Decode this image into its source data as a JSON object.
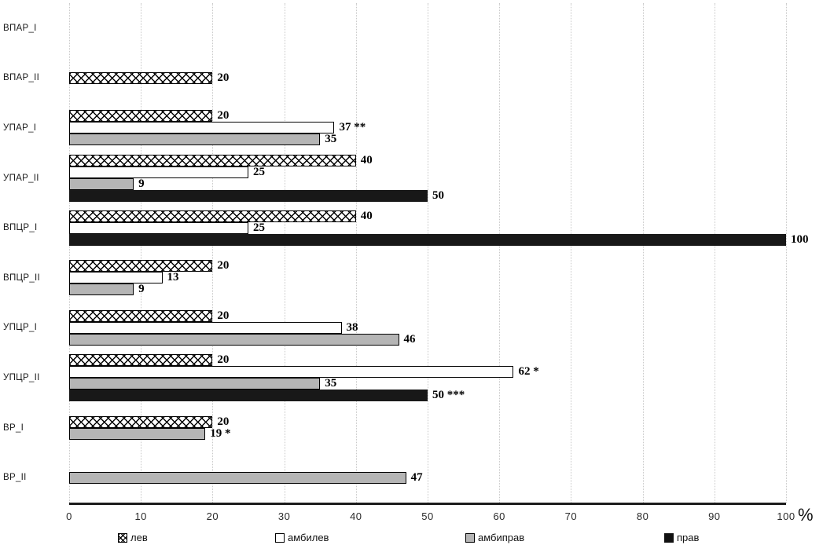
{
  "chart_data": {
    "type": "bar",
    "orientation": "horizontal",
    "title": "",
    "xlabel": "%",
    "percent_label": "%",
    "xlim": [
      0,
      100
    ],
    "x_ticks": [
      "0",
      "10",
      "20",
      "30",
      "40",
      "50",
      "60",
      "70",
      "80",
      "90",
      "100"
    ],
    "grid": "vertical-dotted",
    "legend_position": "bottom",
    "series_styles": {
      "лев": "hatch",
      "амбилев": "white",
      "амбиправ": "gray",
      "прав": "black"
    },
    "legend": [
      {
        "label": "лев",
        "style": "hatch"
      },
      {
        "label": "амбилев",
        "style": "white"
      },
      {
        "label": "амбиправ",
        "style": "gray"
      },
      {
        "label": "прав",
        "style": "black"
      }
    ],
    "groups": [
      {
        "category": "ВПАР_I",
        "bars": []
      },
      {
        "category": "ВПАР_II",
        "bars": [
          {
            "series": "лев",
            "value": 20,
            "label": "20"
          }
        ]
      },
      {
        "category": "УПАР_I",
        "bars": [
          {
            "series": "лев",
            "value": 20,
            "label": "20"
          },
          {
            "series": "амбилев",
            "value": 37,
            "label": "37 **"
          },
          {
            "series": "амбиправ",
            "value": 35,
            "label": "35"
          }
        ]
      },
      {
        "category": "УПАР_II",
        "bars": [
          {
            "series": "лев",
            "value": 40,
            "label": "40"
          },
          {
            "series": "амбилев",
            "value": 25,
            "label": "25"
          },
          {
            "series": "амбиправ",
            "value": 9,
            "label": "9"
          },
          {
            "series": "прав",
            "value": 50,
            "label": "50"
          }
        ]
      },
      {
        "category": "ВПЦР_I",
        "bars": [
          {
            "series": "лев",
            "value": 40,
            "label": "40"
          },
          {
            "series": "амбилев",
            "value": 25,
            "label": "25"
          },
          {
            "series": "прав",
            "value": 100,
            "label": "100"
          }
        ]
      },
      {
        "category": "ВПЦР_II",
        "bars": [
          {
            "series": "лев",
            "value": 20,
            "label": "20"
          },
          {
            "series": "амбилев",
            "value": 13,
            "label": "13"
          },
          {
            "series": "амбиправ",
            "value": 9,
            "label": "9"
          }
        ]
      },
      {
        "category": "УПЦР_I",
        "bars": [
          {
            "series": "лев",
            "value": 20,
            "label": "20"
          },
          {
            "series": "амбилев",
            "value": 38,
            "label": "38"
          },
          {
            "series": "амбиправ",
            "value": 46,
            "label": "46"
          }
        ]
      },
      {
        "category": "УПЦР_II",
        "bars": [
          {
            "series": "лев",
            "value": 20,
            "label": "20"
          },
          {
            "series": "амбилев",
            "value": 62,
            "label": "62 *"
          },
          {
            "series": "амбиправ",
            "value": 35,
            "label": "35"
          },
          {
            "series": "прав",
            "value": 50,
            "label": "50 ***"
          }
        ]
      },
      {
        "category": "ВР_I",
        "bars": [
          {
            "series": "лев",
            "value": 20,
            "label": "20"
          },
          {
            "series": "амбиправ",
            "value": 19,
            "label": "19 *"
          }
        ]
      },
      {
        "category": "ВР_II",
        "bars": [
          {
            "series": "амбиправ",
            "value": 47,
            "label": "47"
          }
        ]
      }
    ],
    "colors": {
      "hatch_bg": "#ffffff",
      "white_bar": "#fdfdfd",
      "gray_bar": "#b5b5b5",
      "black_bar": "#181818",
      "border": "#000000",
      "gridline": "#c9c9c9"
    }
  }
}
